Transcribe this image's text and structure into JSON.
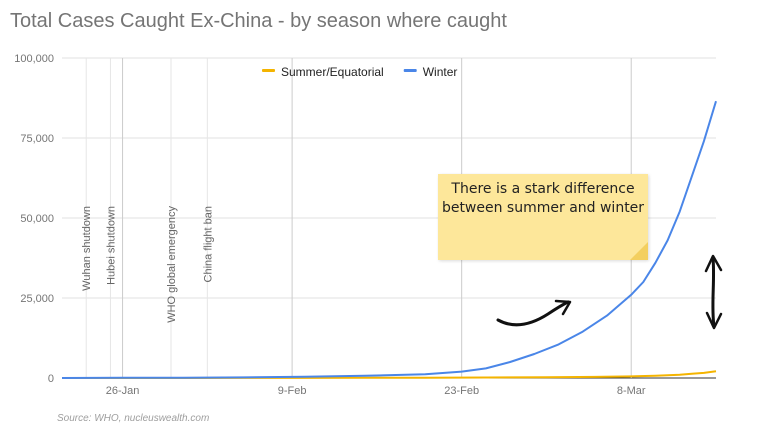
{
  "chart_data": {
    "type": "line",
    "title": "Total Cases Caught Ex-China - by season where caught",
    "source": "Source: WHO, nucleuswealth.com",
    "x_ticks": [
      "26-Jan",
      "9-Feb",
      "23-Feb",
      "8-Mar"
    ],
    "y_ticks": [
      "0",
      "25,000",
      "50,000",
      "75,000",
      "100,000"
    ],
    "ylim": [
      0,
      100000
    ],
    "x_start": "21-Jan",
    "x_end": "15-Mar",
    "series": [
      {
        "name": "Summer/Equatorial",
        "color": "#f4b400",
        "x": [
          "21-Jan",
          "26-Jan",
          "31-Jan",
          "5-Feb",
          "10-Feb",
          "15-Feb",
          "20-Feb",
          "25-Feb",
          "1-Mar",
          "5-Mar",
          "8-Mar",
          "10-Mar",
          "12-Mar",
          "13-Mar",
          "14-Mar",
          "15-Mar"
        ],
        "values": [
          0,
          0,
          10,
          20,
          40,
          60,
          100,
          150,
          250,
          350,
          500,
          700,
          1000,
          1300,
          1600,
          2100
        ]
      },
      {
        "name": "Winter",
        "color": "#4a86e8",
        "x": [
          "21-Jan",
          "26-Jan",
          "31-Jan",
          "5-Feb",
          "10-Feb",
          "15-Feb",
          "20-Feb",
          "23-Feb",
          "25-Feb",
          "27-Feb",
          "29-Feb",
          "2-Mar",
          "4-Mar",
          "6-Mar",
          "8-Mar",
          "9-Mar",
          "10-Mar",
          "11-Mar",
          "12-Mar",
          "13-Mar",
          "14-Mar",
          "15-Mar"
        ],
        "values": [
          10,
          50,
          100,
          200,
          400,
          700,
          1200,
          2000,
          3000,
          5000,
          7500,
          10500,
          14500,
          19500,
          26000,
          30000,
          36000,
          43000,
          52000,
          63000,
          74000,
          86500
        ]
      }
    ],
    "legend": {
      "position": "top-center"
    },
    "grid": true,
    "event_lines": [
      {
        "label": "Wuhan shutdown",
        "date": "23-Jan"
      },
      {
        "label": "Hubei shutdown",
        "date": "25-Jan"
      },
      {
        "label": "WHO global emergency",
        "date": "30-Jan"
      },
      {
        "label": "China flight ban",
        "date": "2-Feb"
      }
    ],
    "annotation": "There is a stark difference between summer and winter"
  }
}
